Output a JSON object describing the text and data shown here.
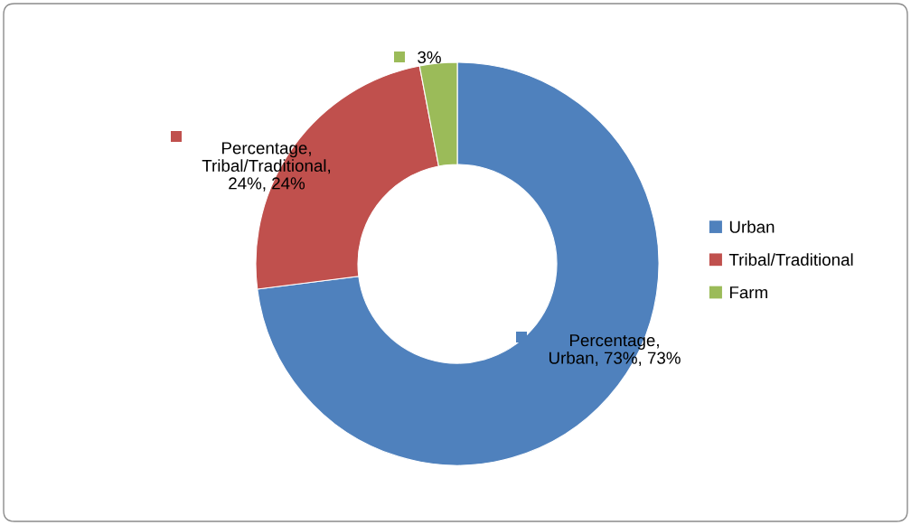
{
  "chart_data": {
    "type": "donut",
    "categories": [
      "Urban",
      "Tribal/Traditional",
      "Farm"
    ],
    "values": [
      73,
      24,
      3
    ],
    "colors": [
      "#4f81bd",
      "#c0504d",
      "#9bbb59"
    ],
    "value_labels": [
      "Percentage,\nUrban, 73%, 73%",
      "Percentage,\nTribal/Traditional,\n24%, 24%",
      "3%"
    ],
    "legend": "right"
  }
}
